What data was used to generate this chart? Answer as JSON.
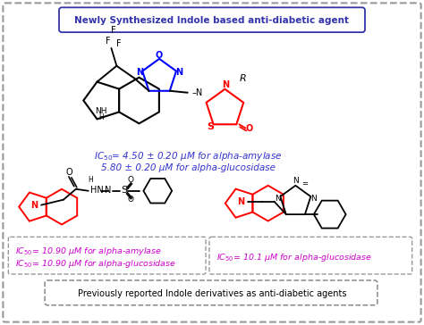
{
  "title": "Newly Synthesized Indole based anti-diabetic agent",
  "bottom_title": "Previously reported Indole derivatives as anti-diabetic agents",
  "ic50_main_line1": "IC$_{50}$= 4.50 ± 0.20 μM for alpha-amylase",
  "ic50_main_line2": "5.80 ± 0.20 μM for alpha-glucosidase",
  "ic50_left_line1": "IC$_{50}$= 10.90 μM for alpha-amylase",
  "ic50_left_line2": "IC$_{50}$= 10.90 μM for alpha-glucosidase",
  "ic50_right": "IC$_{50}$= 10.1 μM for alpha-glucosidase",
  "title_box_color": "#3333aa",
  "ic50_color_main": "#3333cc",
  "ic50_color_left": "#cc00cc",
  "ic50_color_right": "#cc00cc"
}
